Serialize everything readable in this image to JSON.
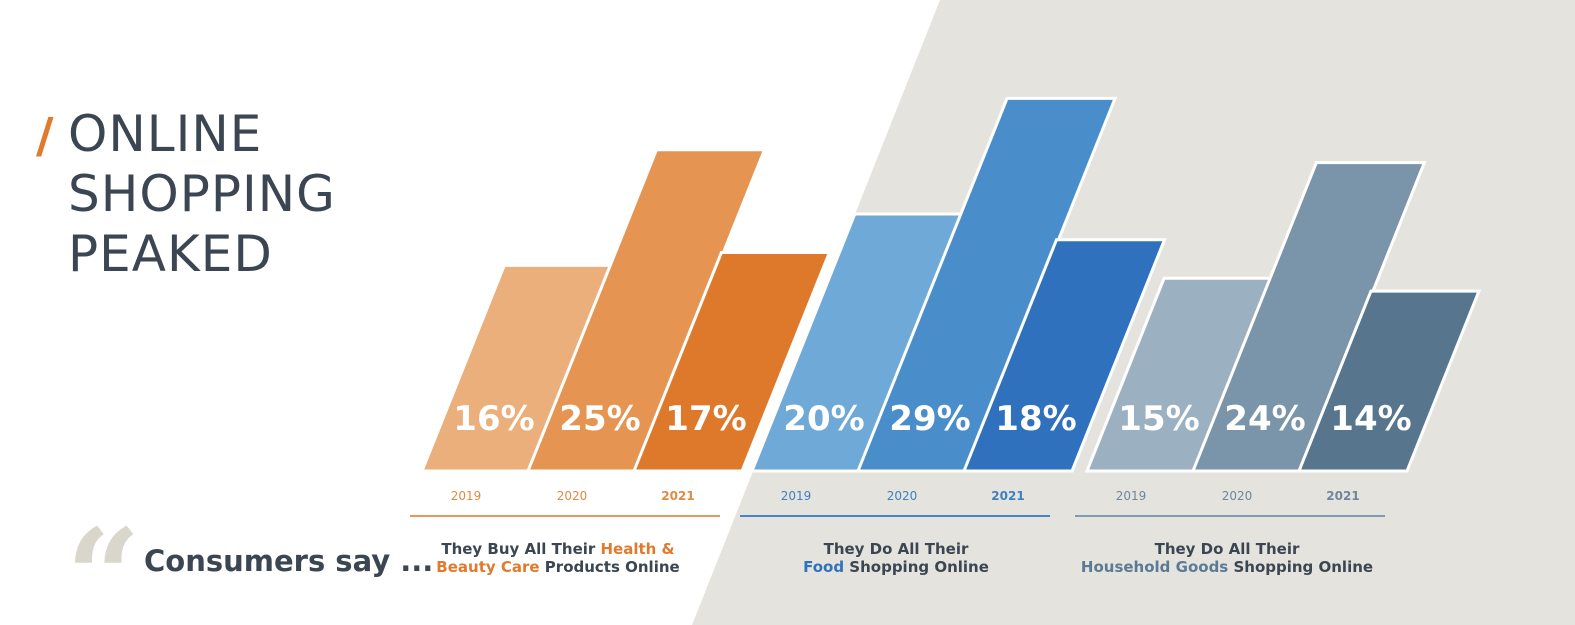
{
  "title": {
    "slash": "/",
    "lines": [
      "ONLINE",
      "SHOPPING",
      "PEAKED"
    ]
  },
  "quote": {
    "mark": "“",
    "text": "Consumers say ..."
  },
  "chart_data": {
    "type": "bar",
    "unit": "%",
    "categories": [
      "2019",
      "2020",
      "2021"
    ],
    "ylim": [
      0,
      33
    ],
    "series": [
      {
        "name": "They Buy All Their Health & Beauty Care Products Online",
        "values": [
          16,
          25,
          17
        ],
        "colors": [
          "#eaaf7a",
          "#e59551",
          "#de782b"
        ],
        "year_label_color": "#e08a43",
        "axis_color": "#e8975a"
      },
      {
        "name": "They Do All Their Food Shopping Online",
        "values": [
          20,
          29,
          18
        ],
        "colors": [
          "#6ea9d8",
          "#4a8dcb",
          "#2f71bd"
        ],
        "year_label_color": "#3f7fc2",
        "axis_color": "#4a83c4"
      },
      {
        "name": "They Do All Their Household Goods Shopping Online",
        "values": [
          15,
          24,
          14
        ],
        "colors": [
          "#9bb0c0",
          "#7a95a9",
          "#57768e"
        ],
        "year_label_color": "#6e879b",
        "axis_color": "#7f9ab4"
      }
    ]
  },
  "captions": [
    {
      "pre": "They Buy All Their ",
      "hl": "Health &",
      "line2_hl": "Beauty Care",
      "post": " Products Online"
    },
    {
      "pre": "They Do All Their",
      "hl": "",
      "line2_hl": "Food",
      "post": " Shopping Online"
    },
    {
      "pre": "They Do All Their",
      "hl": "",
      "line2_hl": "Household Goods",
      "post": " Shopping Online"
    }
  ],
  "background_color": "#e5e3de"
}
